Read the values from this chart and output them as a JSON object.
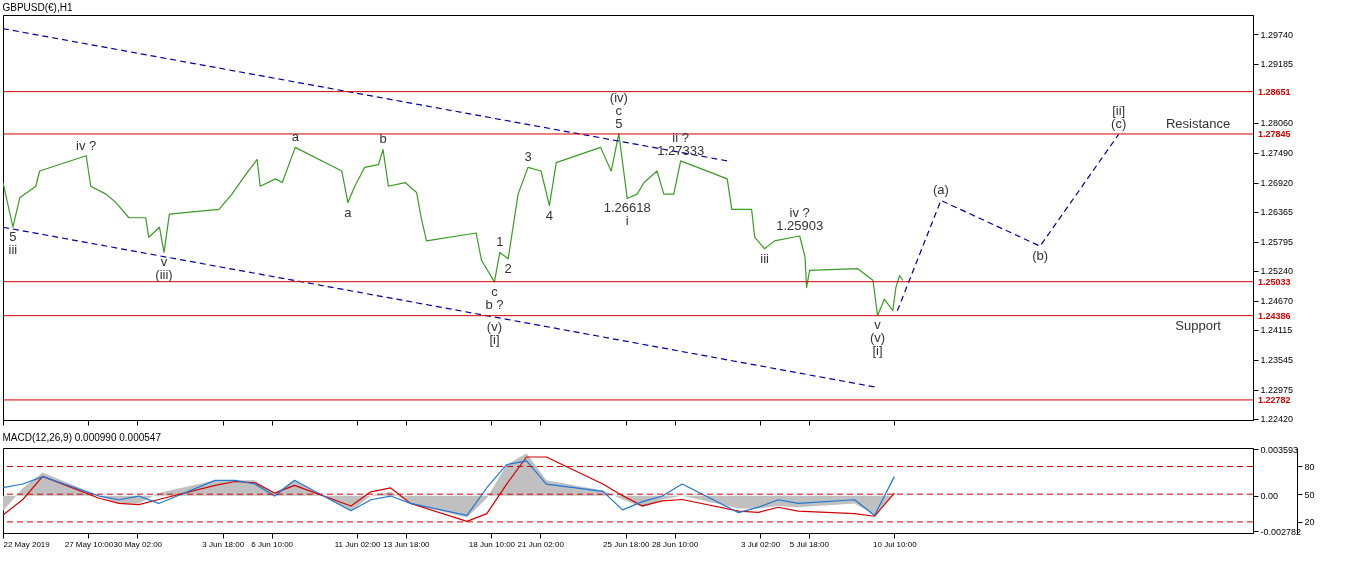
{
  "chart_data": [
    {
      "type": "line",
      "title": "GBPUSD(€),H1",
      "xlim": [
        "2019-05-22T18:00",
        "2019-07-30T00:00"
      ],
      "xticks": [
        {
          "value": "2019-05-22T18:00",
          "label": null
        },
        {
          "value": "2019-05-27T10:00",
          "label": null
        },
        {
          "value": "2019-05-30T02:00",
          "label": null
        },
        {
          "value": "2019-06-03T18:00",
          "label": null
        },
        {
          "value": "2019-06-06T10:00",
          "label": null
        },
        {
          "value": "2019-06-11T02:00",
          "label": null
        },
        {
          "value": "2019-06-13T18:00",
          "label": null
        },
        {
          "value": "2019-06-18T10:00",
          "label": null
        },
        {
          "value": "2019-06-21T02:00",
          "label": null
        },
        {
          "value": "2019-06-25T18:00",
          "label": null
        },
        {
          "value": "2019-06-28T10:00",
          "label": null
        },
        {
          "value": "2019-07-03T02:00",
          "label": null
        },
        {
          "value": "2019-07-05T18:00",
          "label": null
        },
        {
          "value": "2019-07-10T10:00",
          "label": null
        }
      ],
      "ylim": [
        1.224,
        1.3011
      ],
      "yticks": [
        {
          "value": 1.2974,
          "label": "1.29740"
        },
        1.29185,
        {
          "value": 1.2806,
          "label": "1.28060"
        },
        {
          "value": 1.2749,
          "label": "1.27490"
        },
        {
          "value": 1.2692,
          "label": "1.26920"
        },
        1.26365,
        1.25795,
        {
          "value": 1.2524,
          "label": "1.25240"
        },
        {
          "value": 1.2467,
          "label": "1.24670"
        },
        1.24115,
        1.23545,
        1.22975,
        {
          "value": 1.2242,
          "label": "1.22420"
        }
      ],
      "tick_labels": "y",
      "series": [
        {
          "color": "#3a9d23",
          "x": [
            "2019-05-22T18:00",
            "2019-05-23T07:00",
            "2019-05-23T16:00",
            "2019-05-24T13:00",
            "2019-05-24T18:00",
            "2019-05-27T07:00",
            "2019-05-27T13:00",
            "2019-05-28T09:00",
            "2019-05-28T22:00",
            "2019-05-29T15:00",
            "2019-05-30T13:00",
            "2019-05-30T17:00",
            "2019-05-31T07:00",
            "2019-05-31T13:00",
            "2019-05-31T20:00",
            "2019-06-03T13:00",
            "2019-06-04T06:00",
            "2019-06-05T00:00",
            "2019-06-05T15:00",
            "2019-06-05T19:00",
            "2019-06-06T15:00",
            "2019-06-07T00:00",
            "2019-06-07T17:00",
            "2019-06-10T06:00",
            "2019-06-10T14:00",
            "2019-06-10T23:00",
            "2019-06-11T12:00",
            "2019-06-12T06:00",
            "2019-06-12T12:00",
            "2019-06-12T19:00",
            "2019-06-13T17:00",
            "2019-06-14T08:00",
            "2019-06-14T14:00",
            "2019-06-14T21:00",
            "2019-06-17T14:00",
            "2019-06-17T21:00",
            "2019-06-18T14:00",
            "2019-06-18T21:00",
            "2019-06-19T08:00",
            "2019-06-19T21:00",
            "2019-06-20T10:00",
            "2019-06-21T03:00",
            "2019-06-21T14:00",
            "2019-06-21T23:00",
            "2019-06-24T09:00",
            "2019-06-24T23:00",
            "2019-06-25T09:00",
            "2019-06-25T20:00",
            "2019-06-26T09:00",
            "2019-06-26T18:00",
            "2019-06-27T11:00",
            "2019-06-27T20:00",
            "2019-06-28T09:00",
            "2019-06-28T18:00",
            "2019-07-01T07:00",
            "2019-07-01T13:00",
            "2019-07-02T03:00",
            "2019-07-02T15:00",
            "2019-07-02T19:00",
            "2019-07-03T08:00",
            "2019-07-03T21:00",
            "2019-07-05T06:00",
            "2019-07-05T13:00",
            "2019-07-05T15:00",
            "2019-07-05T19:00",
            "2019-07-08T10:00",
            "2019-07-09T06:00",
            "2019-07-09T12:00",
            "2019-07-09T21:00",
            "2019-07-10T08:00",
            "2019-07-10T12:00",
            "2019-07-10T17:00",
            "2019-07-10T21:00"
          ],
          "values": [
            1.2692,
            1.2607,
            1.2663,
            1.2685,
            1.2714,
            1.2743,
            1.2685,
            1.267,
            1.2654,
            1.2625,
            1.2625,
            1.2588,
            1.2607,
            1.2559,
            1.2632,
            1.2641,
            1.267,
            1.2707,
            1.2736,
            1.2685,
            1.2699,
            1.2692,
            1.2759,
            1.2714,
            1.2654,
            1.2685,
            1.2721,
            1.2726,
            1.2755,
            1.2685,
            1.2692,
            1.2673,
            1.2625,
            1.2581,
            1.2596,
            1.2544,
            1.2503,
            1.2559,
            1.2547,
            1.267,
            1.2721,
            1.2714,
            1.2648,
            1.273,
            1.2759,
            1.2714,
            1.2785,
            1.26618,
            1.267,
            1.2692,
            1.2714,
            1.267,
            1.267,
            1.27333,
            1.2699,
            1.2641,
            1.2641,
            1.2641,
            1.2588,
            1.2566,
            1.2581,
            1.25903,
            1.255,
            1.2492,
            1.2525,
            1.2528,
            1.2506,
            1.2439,
            1.247,
            1.2448,
            1.2492,
            1.2515,
            1.2506
          ]
        },
        {
          "color": "#0000a0",
          "line_style": "dashed",
          "x": [
            "2019-05-22T18:00",
            "2019-07-01T08:00"
          ],
          "values": [
            1.2985,
            1.2733
          ]
        },
        {
          "color": "#0000a0",
          "line_style": "dashed",
          "x": [
            "2019-05-22T18:00",
            "2019-06-18T14:00",
            "2019-07-09T08:00"
          ],
          "values": [
            1.2607,
            1.2436,
            1.2303
          ]
        },
        {
          "color": "#0000a0",
          "line_style": "dashed",
          "x": [
            "2019-07-10T14:00",
            "2019-07-12T23:00",
            "2019-07-18T09:00",
            "2019-07-22T16:00"
          ],
          "values": [
            1.2448,
            1.2658,
            1.2571,
            1.2784
          ]
        }
      ],
      "ref_lines": [
        {
          "axis": "y",
          "value": 1.28651,
          "label": "1.28651",
          "color": "#d40000"
        },
        {
          "axis": "y",
          "value": 1.27845,
          "label": "1.27845",
          "color": "#d40000"
        },
        {
          "axis": "y",
          "value": 1.25033,
          "label": "1.25033",
          "color": "#d40000"
        },
        {
          "axis": "y",
          "value": 1.24386,
          "label": "1.24386",
          "color": "#d40000"
        },
        {
          "axis": "y",
          "value": 1.22782,
          "label": "1.22782",
          "color": "#d40000"
        }
      ],
      "annotations": [
        {
          "text": "5",
          "x": "2019-05-23T07:00",
          "y": 1.2607
        },
        {
          "text": "iii",
          "x": "2019-05-23T07:00",
          "y": 1.2607
        },
        {
          "text": "iv ?",
          "x": "2019-05-27T07:00",
          "y": 1.2743
        },
        {
          "text": "v",
          "x": "2019-05-31T13:00",
          "y": 1.2559
        },
        {
          "text": "(iii)",
          "x": "2019-05-31T13:00",
          "y": 1.2559
        },
        {
          "text": "a",
          "x": "2019-06-07T17:00",
          "y": 1.2759
        },
        {
          "text": "a",
          "x": "2019-06-10T14:00",
          "y": 1.2654
        },
        {
          "text": "b",
          "x": "2019-06-12T12:00",
          "y": 1.2755
        },
        {
          "text": "c",
          "x": "2019-06-18T14:00",
          "y": 1.2503
        },
        {
          "text": "b ?",
          "x": "2019-06-18T14:00",
          "y": 1.2503
        },
        {
          "text": "(v)",
          "x": "2019-06-18T14:00",
          "y": 1.2436
        },
        {
          "text": "[i]",
          "x": "2019-06-18T14:00",
          "y": 1.2436
        },
        {
          "text": "1",
          "x": "2019-06-18T21:00",
          "y": 1.2559
        },
        {
          "text": "2",
          "x": "2019-06-19T08:00",
          "y": 1.2547
        },
        {
          "text": "3",
          "x": "2019-06-20T10:00",
          "y": 1.2721
        },
        {
          "text": "4",
          "x": "2019-06-21T14:00",
          "y": 1.2648
        },
        {
          "text": "5",
          "x": "2019-06-25T09:00",
          "y": 1.2785
        },
        {
          "text": "c",
          "x": "2019-06-25T09:00",
          "y": 1.2785
        },
        {
          "text": "(iv)",
          "x": "2019-06-25T09:00",
          "y": 1.2785
        },
        {
          "text": "1.26618",
          "x": "2019-06-25T20:00",
          "y": 1.26618
        },
        {
          "text": "i",
          "x": "2019-06-25T20:00",
          "y": 1.26618
        },
        {
          "text": "1.27333",
          "x": "2019-06-28T18:00",
          "y": 1.27333
        },
        {
          "text": "ii ?",
          "x": "2019-06-28T18:00",
          "y": 1.27333
        },
        {
          "text": "iii",
          "x": "2019-07-03T08:00",
          "y": 1.2566
        },
        {
          "text": "1.25903",
          "x": "2019-07-05T06:00",
          "y": 1.25903
        },
        {
          "text": "iv ?",
          "x": "2019-07-05T06:00",
          "y": 1.25903
        },
        {
          "text": "v",
          "x": "2019-07-09T12:00",
          "y": 1.2439
        },
        {
          "text": "(v)",
          "x": "2019-07-09T12:00",
          "y": 1.2439
        },
        {
          "text": "[i]",
          "x": "2019-07-09T12:00",
          "y": 1.2439
        },
        {
          "text": "(a)",
          "x": "2019-07-12T23:00",
          "y": 1.2658
        },
        {
          "text": "(b)",
          "x": "2019-07-18T09:00",
          "y": 1.2571
        },
        {
          "text": "(c)",
          "x": "2019-07-22T16:00",
          "y": 1.2784
        },
        {
          "text": "[ii]",
          "x": "2019-07-22T16:00",
          "y": 1.2784
        },
        {
          "text": "Resistance",
          "x": "2019-07-27T00:00",
          "y": 1.27845
        },
        {
          "text": "Support",
          "x": "2019-07-27T00:00",
          "y": 1.24386
        }
      ]
    },
    {
      "type": "line",
      "title": "MACD(12,26,9) 0.000990 0.000547",
      "x": [
        "2019-05-22T18:00",
        "2019-05-23T20:00",
        "2019-05-24T22:00",
        "2019-05-28T00:00",
        "2019-05-29T02:00",
        "2019-05-30T04:00",
        "2019-05-31T06:00",
        "2019-06-03T08:00",
        "2019-06-04T10:00",
        "2019-06-05T12:00",
        "2019-06-06T14:00",
        "2019-06-07T16:00",
        "2019-06-10T18:00",
        "2019-06-11T20:00",
        "2019-06-12T22:00",
        "2019-06-14T00:00",
        "2019-06-17T02:00",
        "2019-06-18T04:00",
        "2019-06-19T06:00",
        "2019-06-20T08:00",
        "2019-06-21T10:00",
        "2019-06-24T12:00",
        "2019-06-25T14:00",
        "2019-06-26T16:00",
        "2019-06-27T18:00",
        "2019-06-28T20:00",
        "2019-07-01T22:00",
        "2019-07-03T00:00",
        "2019-07-04T02:00",
        "2019-07-05T04:00",
        "2019-07-08T06:00",
        "2019-07-09T08:00",
        "2019-07-10T10:00"
      ],
      "xlim": [
        "2019-05-22T18:00",
        "2019-07-30T00:00"
      ],
      "xticks": [
        {
          "value": "2019-05-22T18:00",
          "label": "22 May 2019"
        },
        {
          "value": "2019-05-27T10:00",
          "label": "27 May 10:00"
        },
        {
          "value": "2019-05-30T02:00",
          "label": "30 May 02:00"
        },
        {
          "value": "2019-06-03T18:00",
          "label": "3 Jun 18:00"
        },
        {
          "value": "2019-06-06T10:00",
          "label": "6 Jun 10:00"
        },
        {
          "value": "2019-06-11T02:00",
          "label": "11 Jun 02:00"
        },
        {
          "value": "2019-06-13T18:00",
          "label": "13 Jun 18:00"
        },
        {
          "value": "2019-06-18T10:00",
          "label": "18 Jun 10:00"
        },
        {
          "value": "2019-06-21T02:00",
          "label": "21 Jun 02:00"
        },
        {
          "value": "2019-06-25T18:00",
          "label": "25 Jun 18:00"
        },
        {
          "value": "2019-06-28T10:00",
          "label": "28 Jun 10:00"
        },
        {
          "value": "2019-07-03T02:00",
          "label": "3 Jul 02:00"
        },
        {
          "value": "2019-07-05T18:00",
          "label": "5 Jul 18:00"
        },
        {
          "value": "2019-07-10T10:00",
          "label": "10 Jul 10:00"
        }
      ],
      "ylim": [
        -0.0029,
        0.0037
      ],
      "yticks": [
        0.003593,
        {
          "value": 0,
          "label": "0.00"
        },
        -0.002782
      ],
      "y2lim": [
        8,
        100
      ],
      "y2ticks": [
        80,
        50,
        20
      ],
      "series": [
        {
          "type": "area",
          "color": "#c0c0c0",
          "values": [
            -0.0012,
            0.0006,
            0.0018,
            0,
            -0.0006,
            -0.0006,
            0.0002,
            0.0012,
            0.0012,
            0.0012,
            0.0002,
            0.0012,
            -0.0012,
            0,
            0.0003,
            -0.0006,
            -0.0017,
            -0.0002,
            0.0024,
            0.0033,
            0.0012,
            0.0004,
            -0.0003,
            -0.0009,
            -0.0003,
            0,
            -0.001,
            -0.001,
            -0.0008,
            -0.0009,
            -0.0006,
            -0.0015,
            0.0002
          ]
        },
        {
          "color": "#d40000",
          "values": [
            -0.0015,
            -0.0003,
            0.0015,
            -0.0002,
            -0.0006,
            -0.0007,
            -0.0003,
            0.0008,
            0.0011,
            0.001,
            0.0002,
            0.0008,
            -0.0008,
            0.0003,
            0.0006,
            -0.0006,
            -0.002,
            -0.0014,
            0.0009,
            0.003,
            0.003,
            0.0009,
            0,
            -0.0008,
            -0.0004,
            -0.0003,
            -0.0012,
            -0.0013,
            -0.0009,
            -0.0012,
            -0.0014,
            -0.0016,
            0.0002
          ]
        },
        {
          "color": "#1e78d4",
          "axis": "y2",
          "values": [
            57,
            61,
            69,
            48,
            44,
            48,
            40,
            65,
            65,
            61,
            48,
            65,
            32,
            44,
            48,
            40,
            27,
            57,
            82,
            86,
            61,
            53,
            33,
            42,
            48,
            61,
            30,
            36,
            44,
            40,
            44,
            27,
            69
          ]
        }
      ],
      "ref_lines": [
        {
          "axis": "y2",
          "value": 80,
          "color": "#d40000",
          "line_style": "dashed"
        },
        {
          "axis": "y2",
          "value": 50,
          "color": "#d40000",
          "line_style": "dashed"
        },
        {
          "axis": "y2",
          "value": 20,
          "color": "#d40000",
          "line_style": "dashed"
        }
      ]
    }
  ]
}
